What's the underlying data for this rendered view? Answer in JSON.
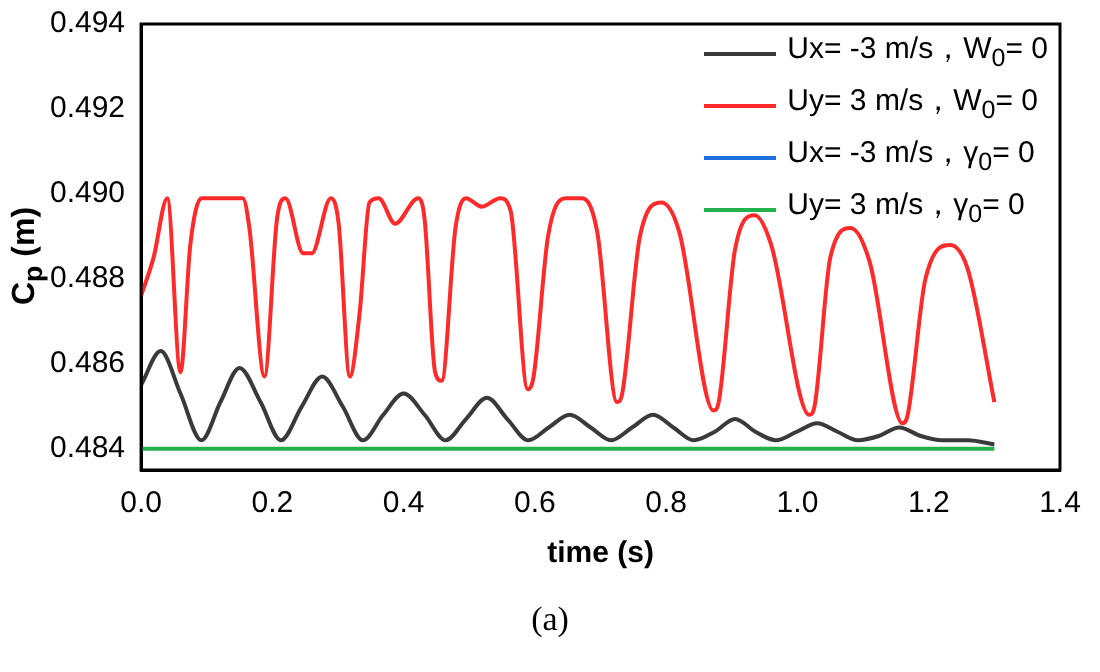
{
  "chart_data": {
    "type": "line",
    "xlabel": "time (s)",
    "ylabel": "C$_{p}$ (m)",
    "annotations": [
      "(a)"
    ],
    "xlim": [
      0,
      1.4
    ],
    "xticks": [
      {
        "value": 0,
        "label": "0.0"
      },
      0.2,
      0.4,
      0.6,
      0.8,
      {
        "value": 1,
        "label": "1.0"
      },
      1.2,
      1.4
    ],
    "ylim": [
      0.4835,
      0.494
    ],
    "yticks": [
      0.484,
      0.486,
      0.488,
      {
        "value": 0.49,
        "label": "0.490"
      },
      0.492,
      0.494
    ],
    "grid": false,
    "legend": "top right",
    "marker": "none",
    "line_style": "solid",
    "series": [
      {
        "name": "Ux= -3 m/s，W$_{0}$= 0",
        "color": "#3a3a3a",
        "x": [
          0,
          0.03,
          0.06,
          0.092,
          0.121,
          0.15,
          0.182,
          0.213,
          0.245,
          0.276,
          0.307,
          0.338,
          0.369,
          0.4,
          0.432,
          0.464,
          0.495,
          0.527,
          0.558,
          0.59,
          0.621,
          0.653,
          0.685,
          0.716,
          0.748,
          0.78,
          0.811,
          0.842,
          0.874,
          0.905,
          0.936,
          0.967,
          0.999,
          1.03,
          1.061,
          1.092,
          1.124,
          1.155,
          1.188,
          1.22,
          1.26,
          1.3
        ],
        "values": [
          0.4855,
          0.4863,
          0.4853,
          0.4842,
          0.4851,
          0.4859,
          0.4851,
          0.4842,
          0.485,
          0.4857,
          0.485,
          0.4842,
          0.4848,
          0.4853,
          0.4848,
          0.4842,
          0.4847,
          0.4852,
          0.4847,
          0.4842,
          0.4845,
          0.4848,
          0.4845,
          0.4842,
          0.4845,
          0.4848,
          0.4845,
          0.4842,
          0.4844,
          0.4847,
          0.4844,
          0.4842,
          0.4844,
          0.4846,
          0.4844,
          0.4842,
          0.4843,
          0.4845,
          0.4843,
          0.4842,
          0.4842,
          0.4841
        ]
      },
      {
        "name": "Uy= 3 m/s，W$_{0}$= 0",
        "color": "#ff2a2a",
        "x": [
          0,
          0.019,
          0.04,
          0.06,
          0.075,
          0.092,
          0.155,
          0.165,
          0.188,
          0.207,
          0.22,
          0.247,
          0.26,
          0.289,
          0.301,
          0.318,
          0.333,
          0.348,
          0.362,
          0.387,
          0.422,
          0.432,
          0.448,
          0.458,
          0.479,
          0.495,
          0.519,
          0.547,
          0.563,
          0.589,
          0.598,
          0.62,
          0.647,
          0.672,
          0.695,
          0.725,
          0.733,
          0.76,
          0.793,
          0.82,
          0.872,
          0.88,
          0.905,
          0.935,
          0.96,
          1.018,
          1.026,
          1.05,
          1.081,
          1.11,
          1.16,
          1.168,
          1.195,
          1.233,
          1.26,
          1.3
        ],
        "values": [
          0.4876,
          0.4885,
          0.4899,
          0.4858,
          0.4888,
          0.4899,
          0.4899,
          0.4892,
          0.4857,
          0.4894,
          0.4899,
          0.4886,
          0.4886,
          0.4899,
          0.4893,
          0.4857,
          0.4872,
          0.4898,
          0.4899,
          0.4893,
          0.4899,
          0.4894,
          0.4858,
          0.4856,
          0.4892,
          0.4899,
          0.4897,
          0.4899,
          0.4896,
          0.4854,
          0.4857,
          0.489,
          0.4899,
          0.4899,
          0.4891,
          0.4851,
          0.4853,
          0.489,
          0.4898,
          0.4891,
          0.4849,
          0.4851,
          0.4887,
          0.4895,
          0.4888,
          0.4848,
          0.485,
          0.4885,
          0.4892,
          0.4884,
          0.4846,
          0.4848,
          0.488,
          0.4888,
          0.4882,
          0.4851
        ]
      },
      {
        "name": "Ux= -3 m/s，γ$_{0}$= 0",
        "color": "#1f6fe0"
      },
      {
        "name": "Uy= 3 m/s，γ$_{0}$= 0",
        "color": "#22b14c",
        "x": [
          0,
          1.3
        ],
        "values": [
          0.484,
          0.484
        ]
      }
    ]
  }
}
